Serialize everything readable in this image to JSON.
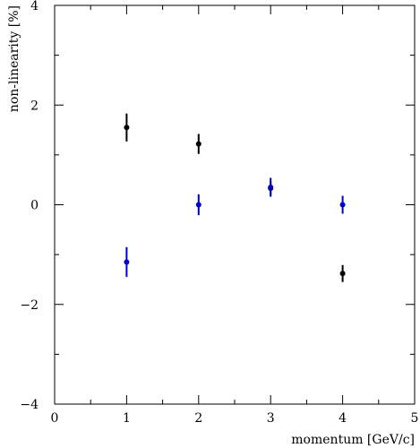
{
  "chart_data": {
    "type": "scatter",
    "title": "",
    "xlabel": "momentum [GeV/c]",
    "ylabel": "non-linearity [%]",
    "xlim": [
      0,
      5
    ],
    "ylim": [
      -4,
      4
    ],
    "x_ticks": [
      0,
      1,
      2,
      3,
      4,
      5
    ],
    "x_tick_labels": [
      "0",
      "1",
      "2",
      "3",
      "4",
      "5"
    ],
    "y_ticks": [
      -4,
      -2,
      0,
      2,
      4
    ],
    "y_tick_labels": [
      "−4",
      "−2",
      "0",
      "2",
      "4"
    ],
    "grid": false,
    "error_bars": true,
    "series": [
      {
        "color": "#000000",
        "points": [
          {
            "x": 1,
            "y": 1.55,
            "err": 0.28
          },
          {
            "x": 2,
            "y": 1.22,
            "err": 0.2
          },
          {
            "x": 3,
            "y": 0.33,
            "err": 0.14
          },
          {
            "x": 4,
            "y": -1.38,
            "err": 0.17
          }
        ]
      },
      {
        "color": "#0000cc",
        "points": [
          {
            "x": 1,
            "y": -1.15,
            "err": 0.3
          },
          {
            "x": 2,
            "y": 0.0,
            "err": 0.21
          },
          {
            "x": 3,
            "y": 0.35,
            "err": 0.19
          },
          {
            "x": 4,
            "y": 0.0,
            "err": 0.18
          }
        ]
      }
    ]
  }
}
